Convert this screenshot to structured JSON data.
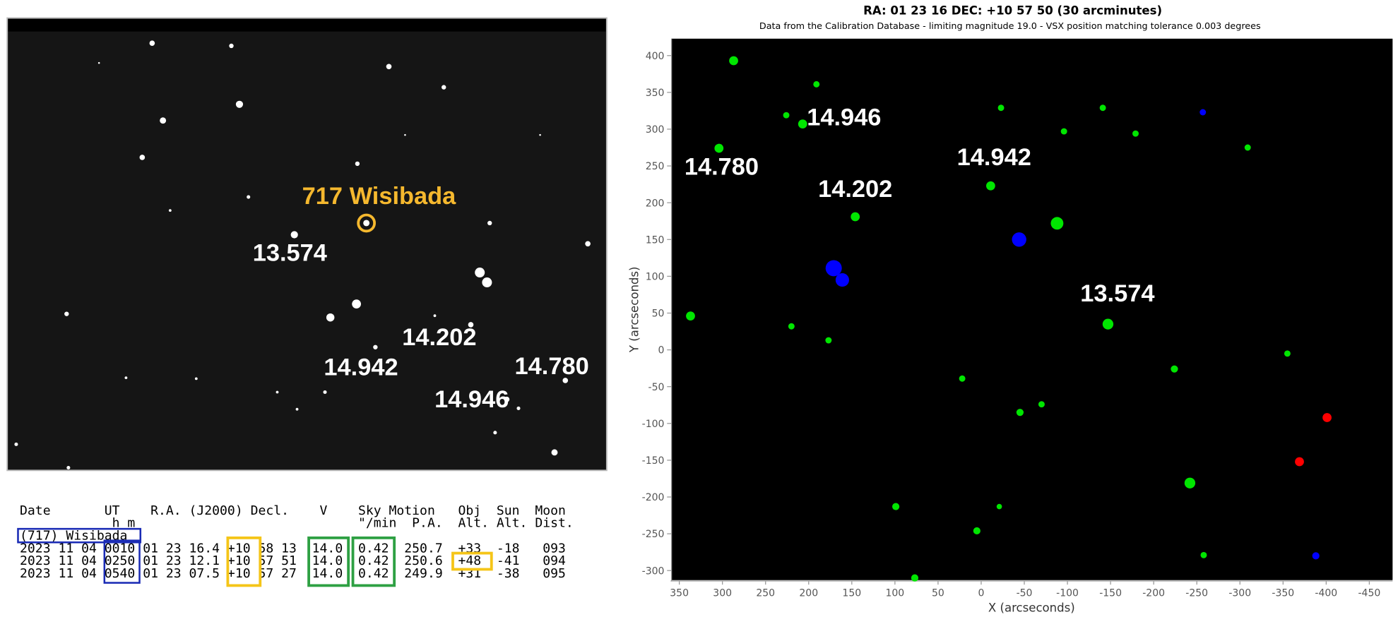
{
  "image": {
    "target_label": "717 Wisibada",
    "magnitude_labels": [
      "13.574",
      "14.202",
      "14.942",
      "14.946",
      "14.780"
    ]
  },
  "ephemeris": {
    "header_lines": [
      "Date       UT    R.A. (J2000) Decl.    V    Sky Motion   Obj  Sun  Moon",
      "            h m                             \"/min  P.A.  Alt. Alt. Dist."
    ],
    "object": "(717) Wisibada",
    "rows": [
      "2023 11 04 0010 01 23 16.4 +10 58 13  14.0  0.42  250.7  +33  -18   093",
      "2023 11 04 0250 01 23 12.1 +10 57 51  14.0  0.42  250.6  +48  -41   094",
      "2023 11 04 0540 01 23 07.5 +10 57 27  14.0  0.42  249.9  +31  -38   095"
    ]
  },
  "chart_data": {
    "type": "scatter",
    "title": "RA: 01 23 16  DEC: +10 57 50 (30 arcminutes)",
    "subtitle": "Data from the Calibration Database - limiting magnitude 19.0 - VSX position matching tolerance 0.003 degrees",
    "x_label": "X (arcseconds)",
    "y_label": "Y (arcseconds)",
    "xlim": [
      359,
      -477
    ],
    "ylim": [
      -313,
      423
    ],
    "xticks": [
      350,
      300,
      250,
      200,
      150,
      100,
      50,
      0,
      -50,
      -100,
      -150,
      -200,
      -250,
      -300,
      -350,
      -400,
      -450
    ],
    "yticks": [
      -300,
      -250,
      -200,
      -150,
      -100,
      -50,
      0,
      50,
      100,
      150,
      200,
      250,
      300,
      350,
      400
    ],
    "series": [
      {
        "color": "#00e600",
        "x": [
          287,
          191,
          226,
          207,
          304,
          -23,
          -141,
          -96,
          -179,
          -309,
          -11,
          146,
          -88,
          -147,
          337,
          220,
          177,
          -355,
          -224,
          22,
          -45,
          -70,
          99,
          5,
          -21,
          -242,
          -258,
          77
        ],
        "values": [
          393,
          361,
          319,
          307,
          274,
          329,
          329,
          297,
          294,
          275,
          223,
          181,
          172,
          35,
          46,
          32,
          13,
          -5,
          -26,
          -39,
          -85,
          -74,
          -213,
          -246,
          -213,
          -181,
          -279,
          -310
        ],
        "sizes": [
          5,
          3.5,
          3.5,
          5,
          5,
          3.5,
          3.5,
          3.5,
          3.5,
          3.5,
          5,
          5,
          7,
          6,
          5,
          3.5,
          3.5,
          3.5,
          4,
          3.5,
          4,
          3.5,
          4,
          4,
          3,
          6,
          3.5,
          4
        ]
      },
      {
        "color": "#0000ff",
        "x": [
          -257,
          -44,
          171,
          161,
          -388
        ],
        "values": [
          323,
          150,
          111,
          95,
          -280
        ],
        "sizes": [
          3.5,
          8,
          9,
          7.5,
          4
        ]
      },
      {
        "color": "#ff0000",
        "x": [
          -401,
          -369
        ],
        "values": [
          -92,
          -152
        ],
        "sizes": [
          5,
          5
        ]
      }
    ],
    "annotations": [
      {
        "text": "14.946",
        "x": 159,
        "y": 305
      },
      {
        "text": "14.780",
        "x": 301,
        "y": 238
      },
      {
        "text": "14.942",
        "x": -15,
        "y": 251
      },
      {
        "text": "14.202",
        "x": 146,
        "y": 208
      },
      {
        "text": "13.574",
        "x": -158,
        "y": 66
      }
    ]
  }
}
